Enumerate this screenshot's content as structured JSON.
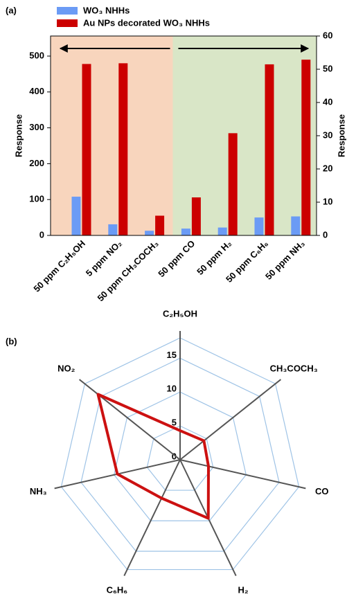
{
  "chart_data": [
    {
      "type": "bar",
      "panel_label": "(a)",
      "y_label": "Response",
      "y2_label": "Response",
      "categories": [
        "50 ppm C₂H₅OH",
        "5 ppm NO₂",
        "50 ppm CH₃COCH₃",
        "50 ppm CO",
        "50 ppm H₂",
        "50 ppm C₆H₆",
        "50 ppm NH₃"
      ],
      "series": [
        {
          "name": "WO₃ NHHs",
          "color": "#6b9bf5",
          "values": [
            108,
            31,
            13,
            19,
            22,
            50,
            53
          ]
        },
        {
          "name": "Au NPs decorated WO₃ NHHs",
          "color": "#cc0000",
          "values": [
            478,
            480,
            55,
            106,
            285,
            477,
            490
          ]
        }
      ],
      "ylim": [
        0,
        556
      ],
      "yticks": [
        0,
        100,
        200,
        300,
        400,
        500
      ],
      "y2lim": [
        0,
        60
      ],
      "y2ticks": [
        0,
        10,
        20,
        30,
        40,
        50,
        60
      ]
    },
    {
      "type": "radar",
      "panel_label": "(b)",
      "categories": [
        "C₂H₅OH",
        "CH₃COCH₃",
        "CO",
        "H₂",
        "C₆H₆",
        "NH₃",
        "NO₂"
      ],
      "series": [
        {
          "color": "#cc1111",
          "values": [
            4.3,
            4.5,
            4.3,
            9.6,
            6.3,
            9.5,
            15.5
          ]
        }
      ],
      "rlim": [
        0,
        18
      ],
      "rticks": [
        0,
        5,
        10,
        15
      ]
    }
  ]
}
